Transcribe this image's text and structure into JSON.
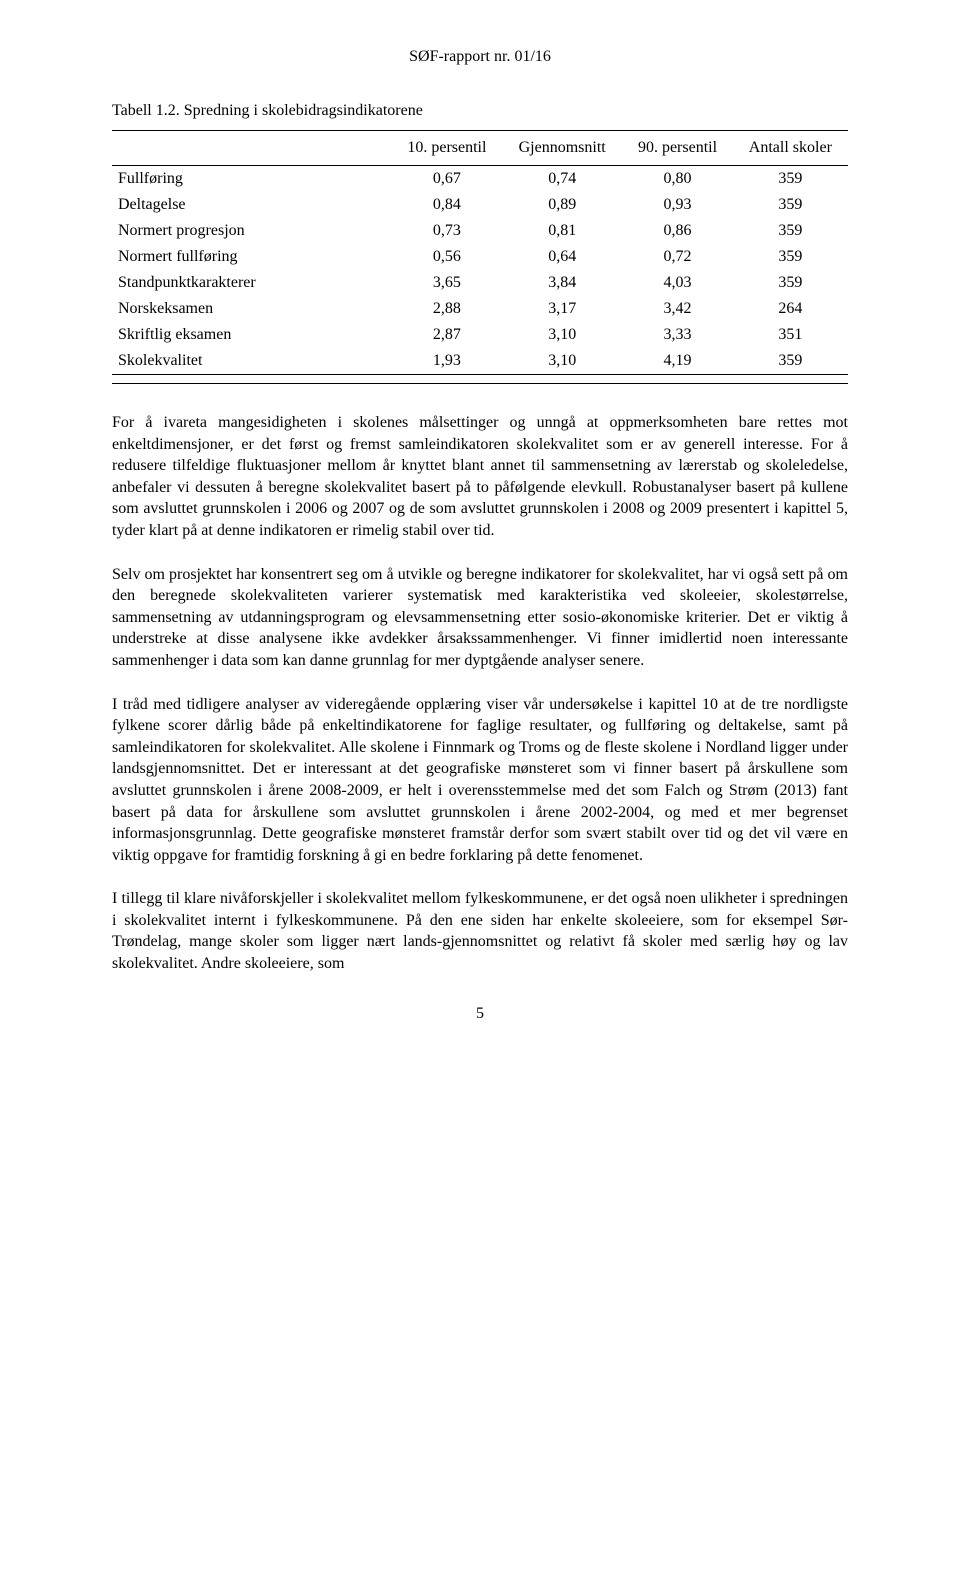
{
  "header": {
    "report_no": "SØF-rapport nr. 01/16"
  },
  "table": {
    "caption": "Tabell 1.2. Spredning i skolebidragsindikatorene",
    "columns": [
      "",
      "10. persentil",
      "Gjennomsnitt",
      "90. persentil",
      "Antall skoler"
    ],
    "rows": [
      {
        "label": "Fullføring",
        "c1": "0,67",
        "c2": "0,74",
        "c3": "0,80",
        "c4": "359"
      },
      {
        "label": "Deltagelse",
        "c1": "0,84",
        "c2": "0,89",
        "c3": "0,93",
        "c4": "359"
      },
      {
        "label": "Normert progresjon",
        "c1": "0,73",
        "c2": "0,81",
        "c3": "0,86",
        "c4": "359"
      },
      {
        "label": "Normert fullføring",
        "c1": "0,56",
        "c2": "0,64",
        "c3": "0,72",
        "c4": "359"
      },
      {
        "label": "Standpunktkarakterer",
        "c1": "3,65",
        "c2": "3,84",
        "c3": "4,03",
        "c4": "359"
      },
      {
        "label": "Norskeksamen",
        "c1": "2,88",
        "c2": "3,17",
        "c3": "3,42",
        "c4": "264"
      },
      {
        "label": "Skriftlig eksamen",
        "c1": "2,87",
        "c2": "3,10",
        "c3": "3,33",
        "c4": "351"
      },
      {
        "label": "Skolekvalitet",
        "c1": "1,93",
        "c2": "3,10",
        "c3": "4,19",
        "c4": "359"
      }
    ]
  },
  "para1": "For å ivareta mangesidigheten i skolenes målsettinger og unngå at oppmerksomheten bare rettes mot enkeltdimensjoner, er det først og fremst samleindikatoren skolekvalitet som er av generell interesse. For å redusere tilfeldige fluktuasjoner mellom år knyttet blant annet til sammensetning av lærerstab og skoleledelse, anbefaler vi dessuten å beregne skolekvalitet basert på to påfølgende elevkull. Robustanalyser basert på kullene som avsluttet grunnskolen i 2006 og 2007 og de som avsluttet grunnskolen i 2008 og 2009 presentert i kapittel 5, tyder klart på at denne indikatoren er rimelig stabil over tid.",
  "para2": "Selv om prosjektet har konsentrert seg om å utvikle og beregne indikatorer for skolekvalitet, har vi også sett på om den beregnede skolekvaliteten varierer systematisk med karakteristika ved skoleeier, skolestørrelse, sammensetning av utdanningsprogram og elevsammensetning etter sosio-økonomiske kriterier. Det er viktig å understreke at disse analysene ikke avdekker årsakssammenhenger. Vi finner imidlertid noen interessante sammenhenger i data som kan danne grunnlag for mer dyptgående analyser senere.",
  "para3": "I tråd med tidligere analyser av videregående opplæring viser vår undersøkelse i kapittel 10 at de tre nordligste fylkene scorer dårlig både på enkeltindikatorene for faglige resultater, og fullføring og deltakelse, samt på samleindikatoren for skolekvalitet. Alle skolene i Finnmark og Troms og de fleste skolene i Nordland ligger under landsgjennomsnittet. Det er interessant at det geografiske mønsteret som vi finner basert på årskullene som avsluttet grunnskolen i årene 2008-2009, er helt i overensstemmelse med det som Falch og Strøm (2013) fant basert på data for årskullene som avsluttet grunnskolen i årene 2002-2004, og med et mer begrenset informasjonsgrunnlag. Dette geografiske mønsteret framstår derfor som svært stabilt over tid og det vil være en viktig oppgave for framtidig forskning å gi en bedre forklaring på dette fenomenet.",
  "para4": "I tillegg til klare nivåforskjeller i skolekvalitet mellom fylkeskommunene, er det også noen ulikheter i spredningen i skolekvalitet internt i fylkeskommunene. På den ene siden har enkelte skoleeiere, som for eksempel Sør-Trøndelag, mange skoler som ligger nært lands-gjennomsnittet og relativt få skoler med særlig høy og lav skolekvalitet. Andre skoleeiere, som",
  "page_number": "5"
}
